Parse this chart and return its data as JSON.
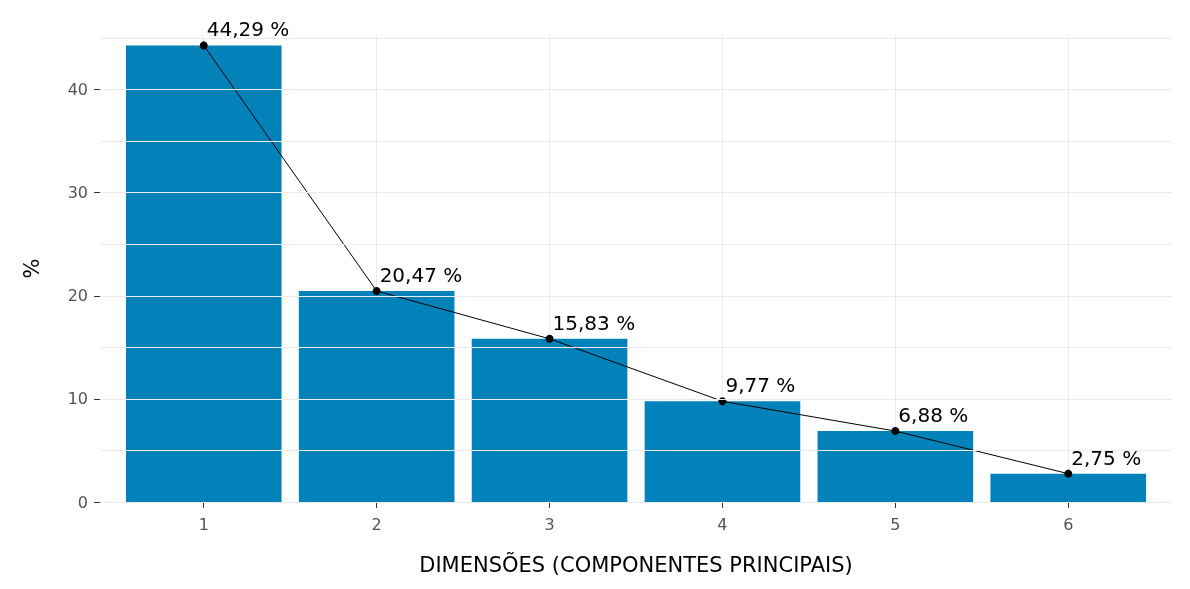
{
  "chart_data": {
    "type": "bar",
    "xlabel": "DIMENSÕES (COMPONENTES PRINCIPAIS)",
    "ylabel": "%",
    "x": [
      1,
      2,
      3,
      4,
      5,
      6
    ],
    "xlim": [
      0.4,
      6.6
    ],
    "xticks": [
      1,
      2,
      3,
      4,
      5,
      6
    ],
    "ylim": [
      0,
      45.3
    ],
    "yticks": [
      0,
      {
        "value": 5,
        "label": null
      },
      10,
      {
        "value": 15,
        "label": null
      },
      20,
      {
        "value": 25,
        "label": null
      },
      30,
      {
        "value": 35,
        "label": null
      },
      40,
      {
        "value": 45,
        "label": null
      }
    ],
    "grid": true,
    "marker": "circle",
    "series": [
      {
        "color": "#0282b8",
        "values": [
          44.29,
          20.47,
          15.83,
          9.77,
          6.88,
          2.75
        ]
      },
      {
        "type": "line",
        "color": "#000000",
        "values": [
          44.29,
          20.47,
          15.83,
          9.77,
          6.88,
          2.75
        ],
        "value_labels": [
          "44,29 %",
          "20,47 %",
          "15,83 %",
          "9,77 %",
          "6,88 %",
          "2,75 %"
        ]
      }
    ]
  }
}
